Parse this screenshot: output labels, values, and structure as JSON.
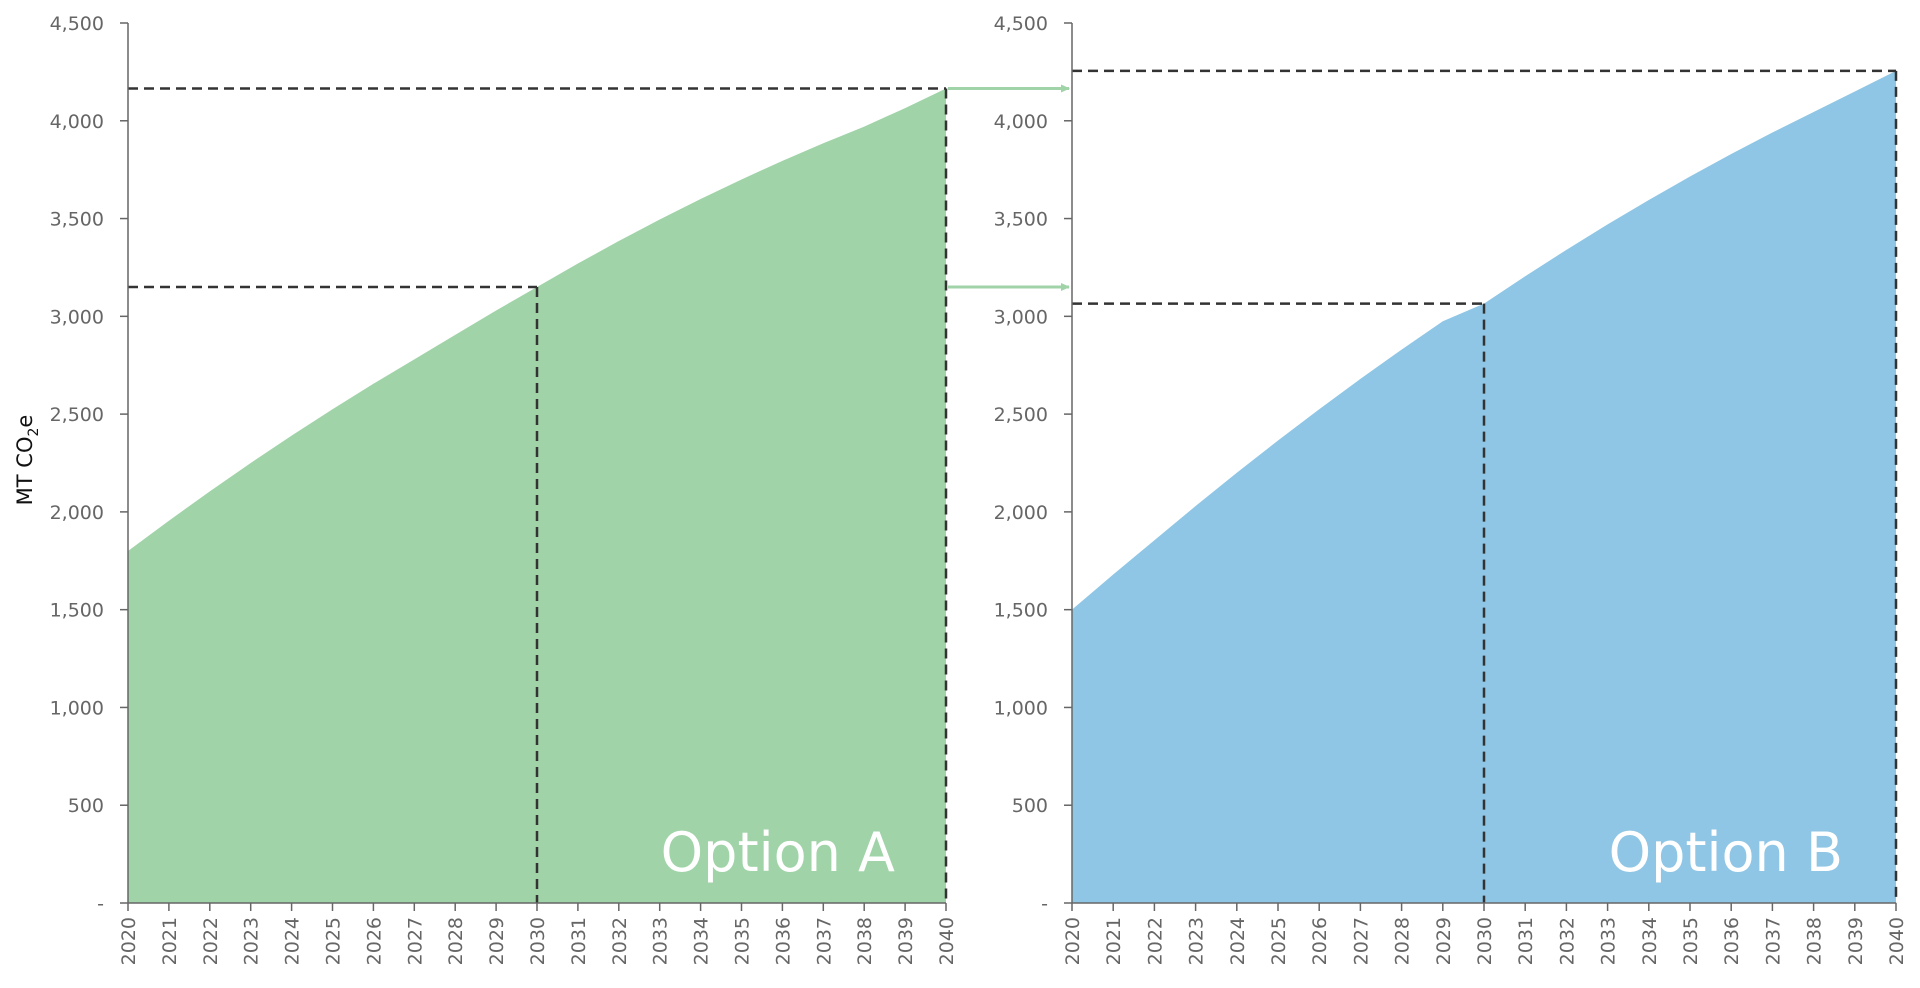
{
  "y_axis_label": {
    "main": "MT CO",
    "sub": "2",
    "end": "e"
  },
  "colors": {
    "optionA": "#a0d3a8",
    "optionB": "#8fc6e5",
    "arrow": "#a0d3a8",
    "guide": "#333333",
    "axis": "#666666"
  },
  "chart_data": [
    {
      "type": "area",
      "title": "",
      "annotation": "Option A",
      "xlabel": "",
      "ylabel": "MT CO2e",
      "x": [
        2020,
        2021,
        2022,
        2023,
        2024,
        2025,
        2026,
        2027,
        2028,
        2029,
        2030,
        2031,
        2032,
        2033,
        2034,
        2035,
        2036,
        2037,
        2038,
        2039,
        2040
      ],
      "series": [
        {
          "values": [
            1800,
            1955,
            2105,
            2250,
            2390,
            2525,
            2655,
            2780,
            2905,
            3030,
            3150,
            3270,
            3385,
            3495,
            3600,
            3700,
            3795,
            3885,
            3970,
            4065,
            4165
          ]
        }
      ],
      "xlim": [
        2020,
        2040
      ],
      "ylim": [
        0,
        4500
      ],
      "yticks": [
        0,
        500,
        1000,
        1500,
        2000,
        2500,
        3000,
        3500,
        4000,
        4500
      ],
      "ytick_labels": [
        "-",
        "500",
        "1,000",
        "1,500",
        "2,000",
        "2,500",
        "3,000",
        "3,500",
        "4,000",
        "4,500"
      ],
      "guides": [
        {
          "x": 2030,
          "y": 3150
        },
        {
          "x": 2040,
          "y": 4165
        }
      ],
      "grid": false
    },
    {
      "type": "area",
      "title": "",
      "annotation": "Option B",
      "xlabel": "",
      "ylabel": "",
      "x": [
        2020,
        2021,
        2022,
        2023,
        2024,
        2025,
        2026,
        2027,
        2028,
        2029,
        2030,
        2031,
        2032,
        2033,
        2034,
        2035,
        2036,
        2037,
        2038,
        2039,
        2040
      ],
      "series": [
        {
          "values": [
            1500,
            1680,
            1855,
            2030,
            2200,
            2365,
            2525,
            2680,
            2830,
            2975,
            3065,
            3205,
            3340,
            3470,
            3595,
            3715,
            3830,
            3940,
            4045,
            4150,
            4255
          ]
        }
      ],
      "xlim": [
        2020,
        2040
      ],
      "ylim": [
        0,
        4500
      ],
      "yticks": [
        0,
        500,
        1000,
        1500,
        2000,
        2500,
        3000,
        3500,
        4000,
        4500
      ],
      "ytick_labels": [
        "-",
        "500",
        "1,000",
        "1,500",
        "2,000",
        "2,500",
        "3,000",
        "3,500",
        "4,000",
        "4,500"
      ],
      "guides": [
        {
          "x": 2030,
          "y": 3065
        },
        {
          "x": 2040,
          "y": 4255
        }
      ],
      "grid": false
    }
  ]
}
